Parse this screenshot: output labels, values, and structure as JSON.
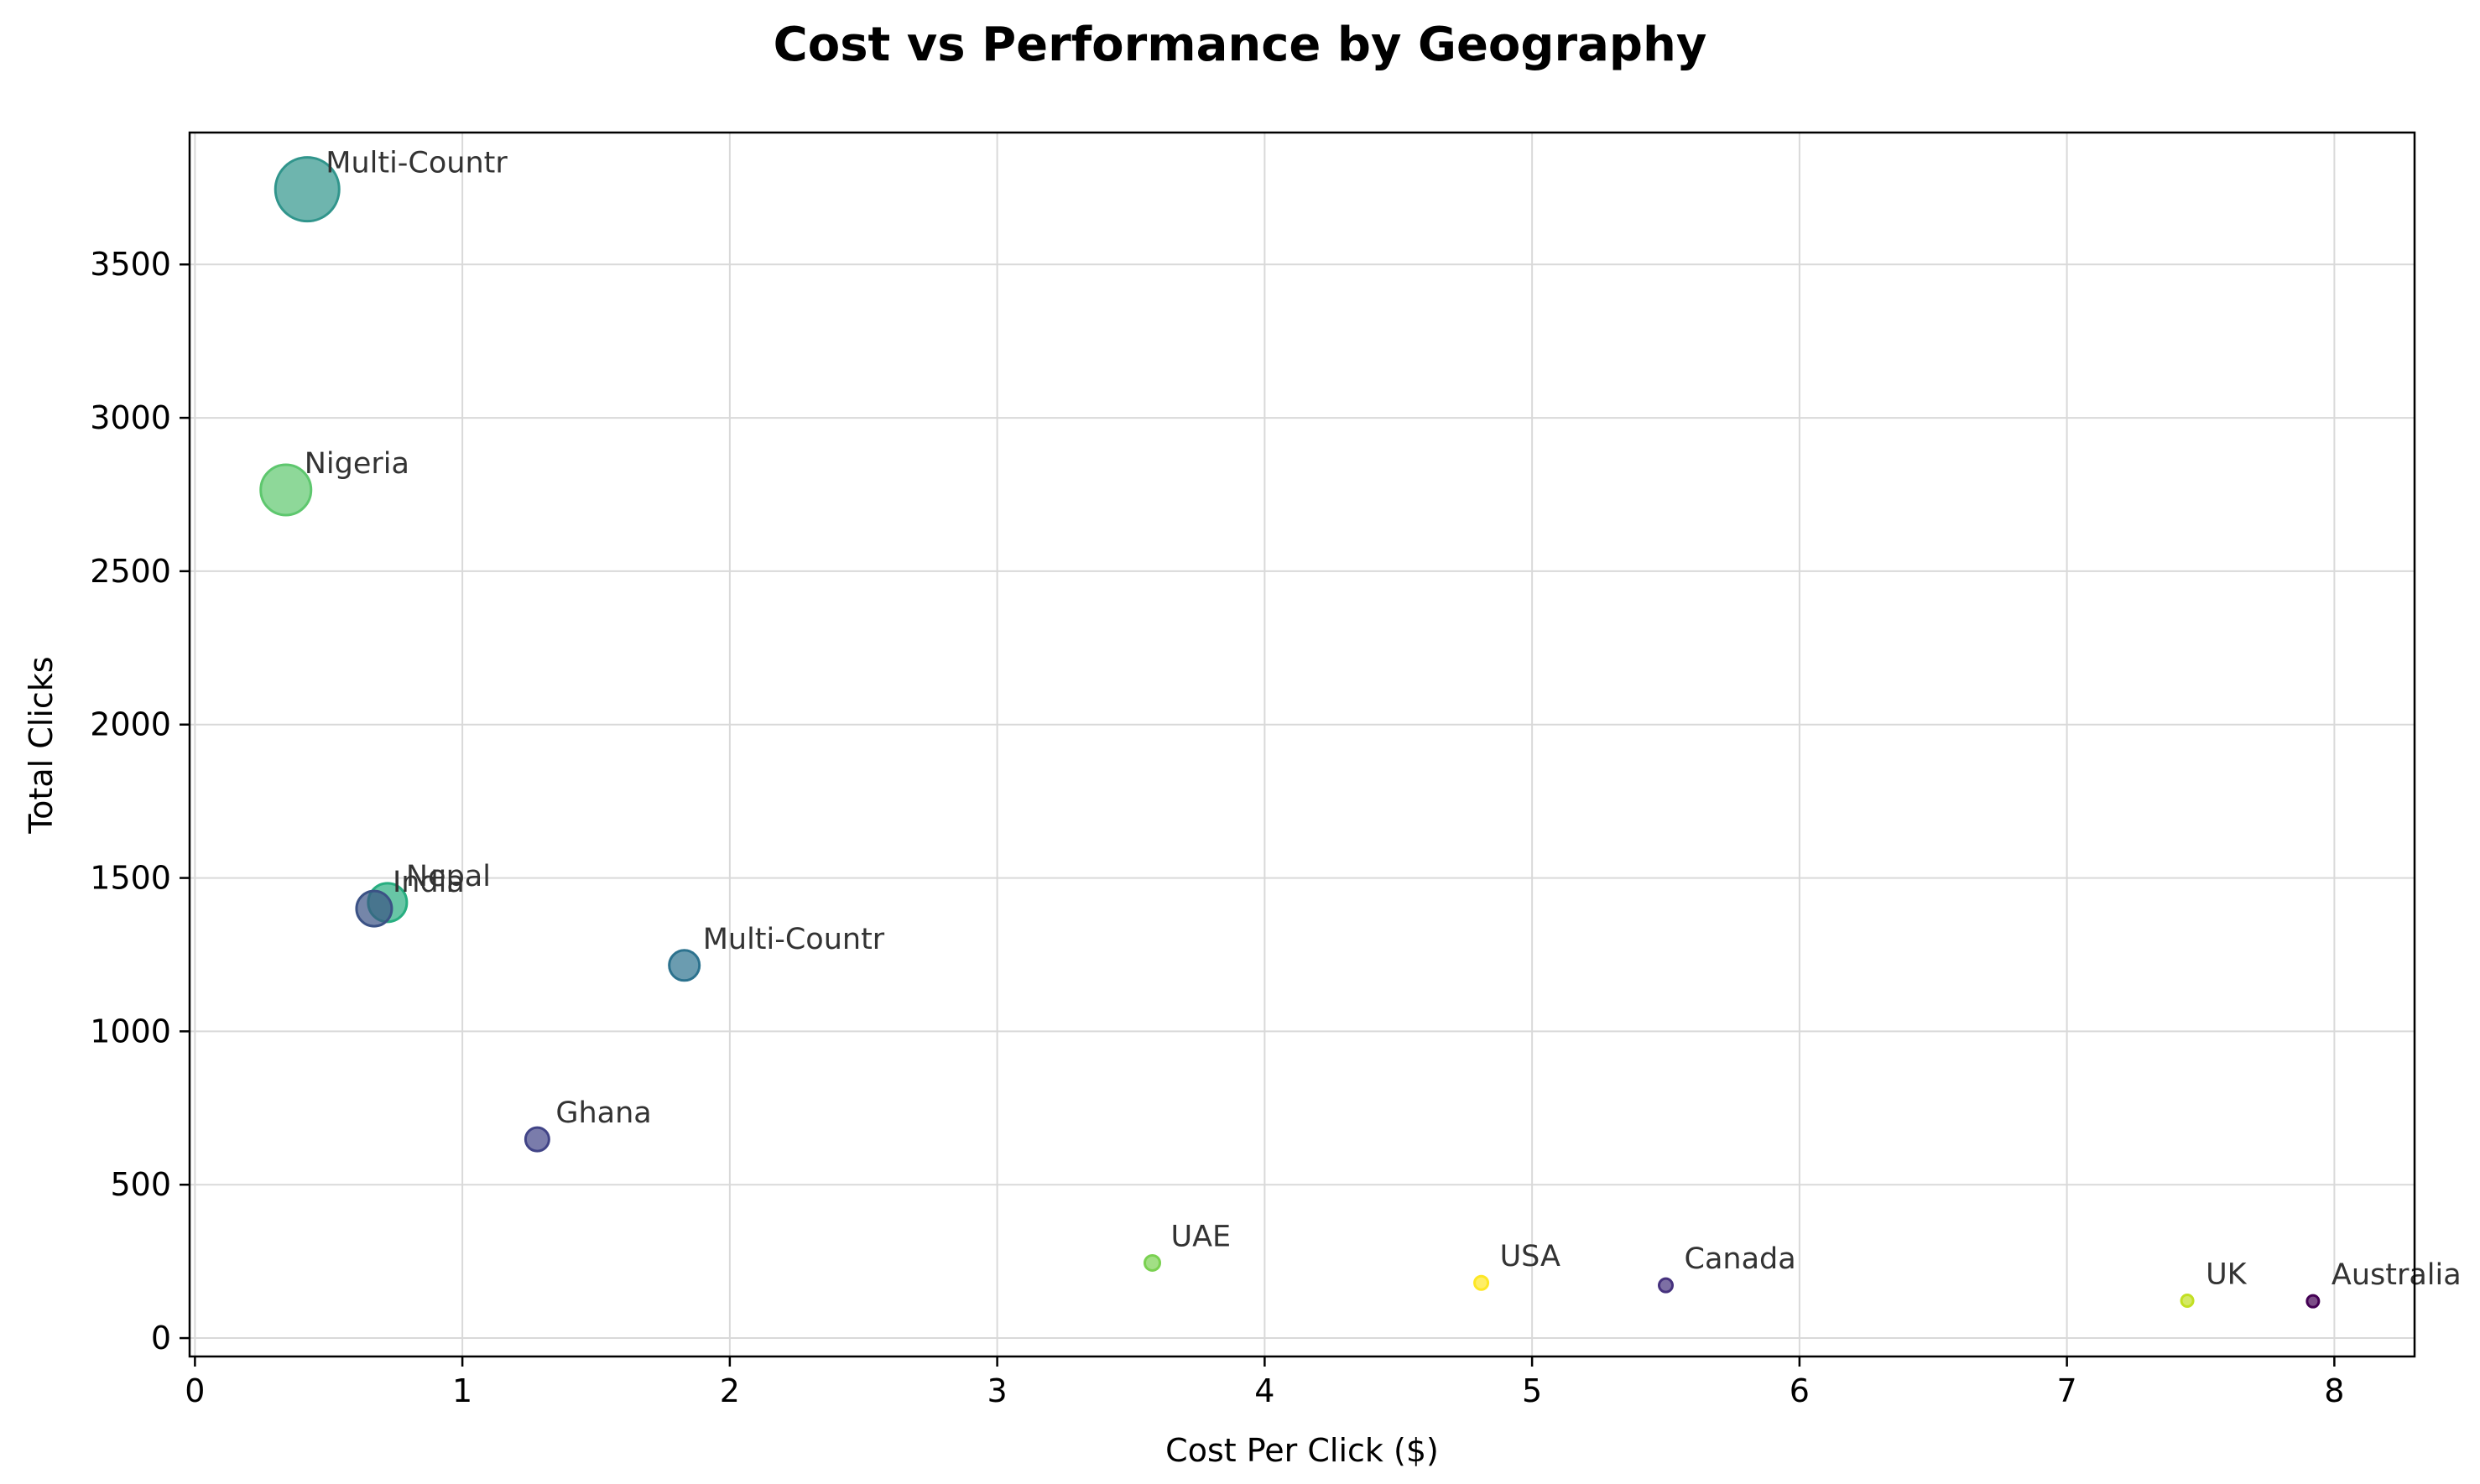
{
  "chart_data": {
    "type": "scatter",
    "title": "Cost vs Performance by Geography",
    "xlabel": "Cost Per Click ($)",
    "ylabel": "Total Clicks",
    "xlim": [
      -0.02,
      8.3
    ],
    "ylim": [
      -60,
      3930
    ],
    "xticks": [
      0,
      1,
      2,
      3,
      4,
      5,
      6,
      7,
      8
    ],
    "yticks": [
      0,
      500,
      1000,
      1500,
      2000,
      2500,
      3000,
      3500
    ],
    "grid": true,
    "legend": "none",
    "points": [
      {
        "label": "Multi-Countr",
        "x": 0.42,
        "y": 3745,
        "size": 38,
        "color": "#31958c"
      },
      {
        "label": "Nigeria",
        "x": 0.34,
        "y": 2765,
        "size": 30,
        "color": "#5ec76e"
      },
      {
        "label": "Nepal",
        "x": 0.72,
        "y": 1420,
        "size": 23,
        "color": "#28ae80"
      },
      {
        "label": "India",
        "x": 0.67,
        "y": 1400,
        "size": 21,
        "color": "#3b5285"
      },
      {
        "label": "Multi-Countr",
        "x": 1.83,
        "y": 1215,
        "size": 18,
        "color": "#2c728e"
      },
      {
        "label": "Ghana",
        "x": 1.28,
        "y": 648,
        "size": 14,
        "color": "#414487"
      },
      {
        "label": "UAE",
        "x": 3.58,
        "y": 245,
        "size": 9,
        "color": "#7ad151"
      },
      {
        "label": "USA",
        "x": 4.81,
        "y": 180,
        "size": 8,
        "color": "#fde725"
      },
      {
        "label": "Canada",
        "x": 5.5,
        "y": 172,
        "size": 8,
        "color": "#46327e"
      },
      {
        "label": "UK",
        "x": 7.45,
        "y": 122,
        "size": 7,
        "color": "#c2df23"
      },
      {
        "label": "Australia",
        "x": 7.92,
        "y": 120,
        "size": 7,
        "color": "#440154"
      }
    ]
  }
}
